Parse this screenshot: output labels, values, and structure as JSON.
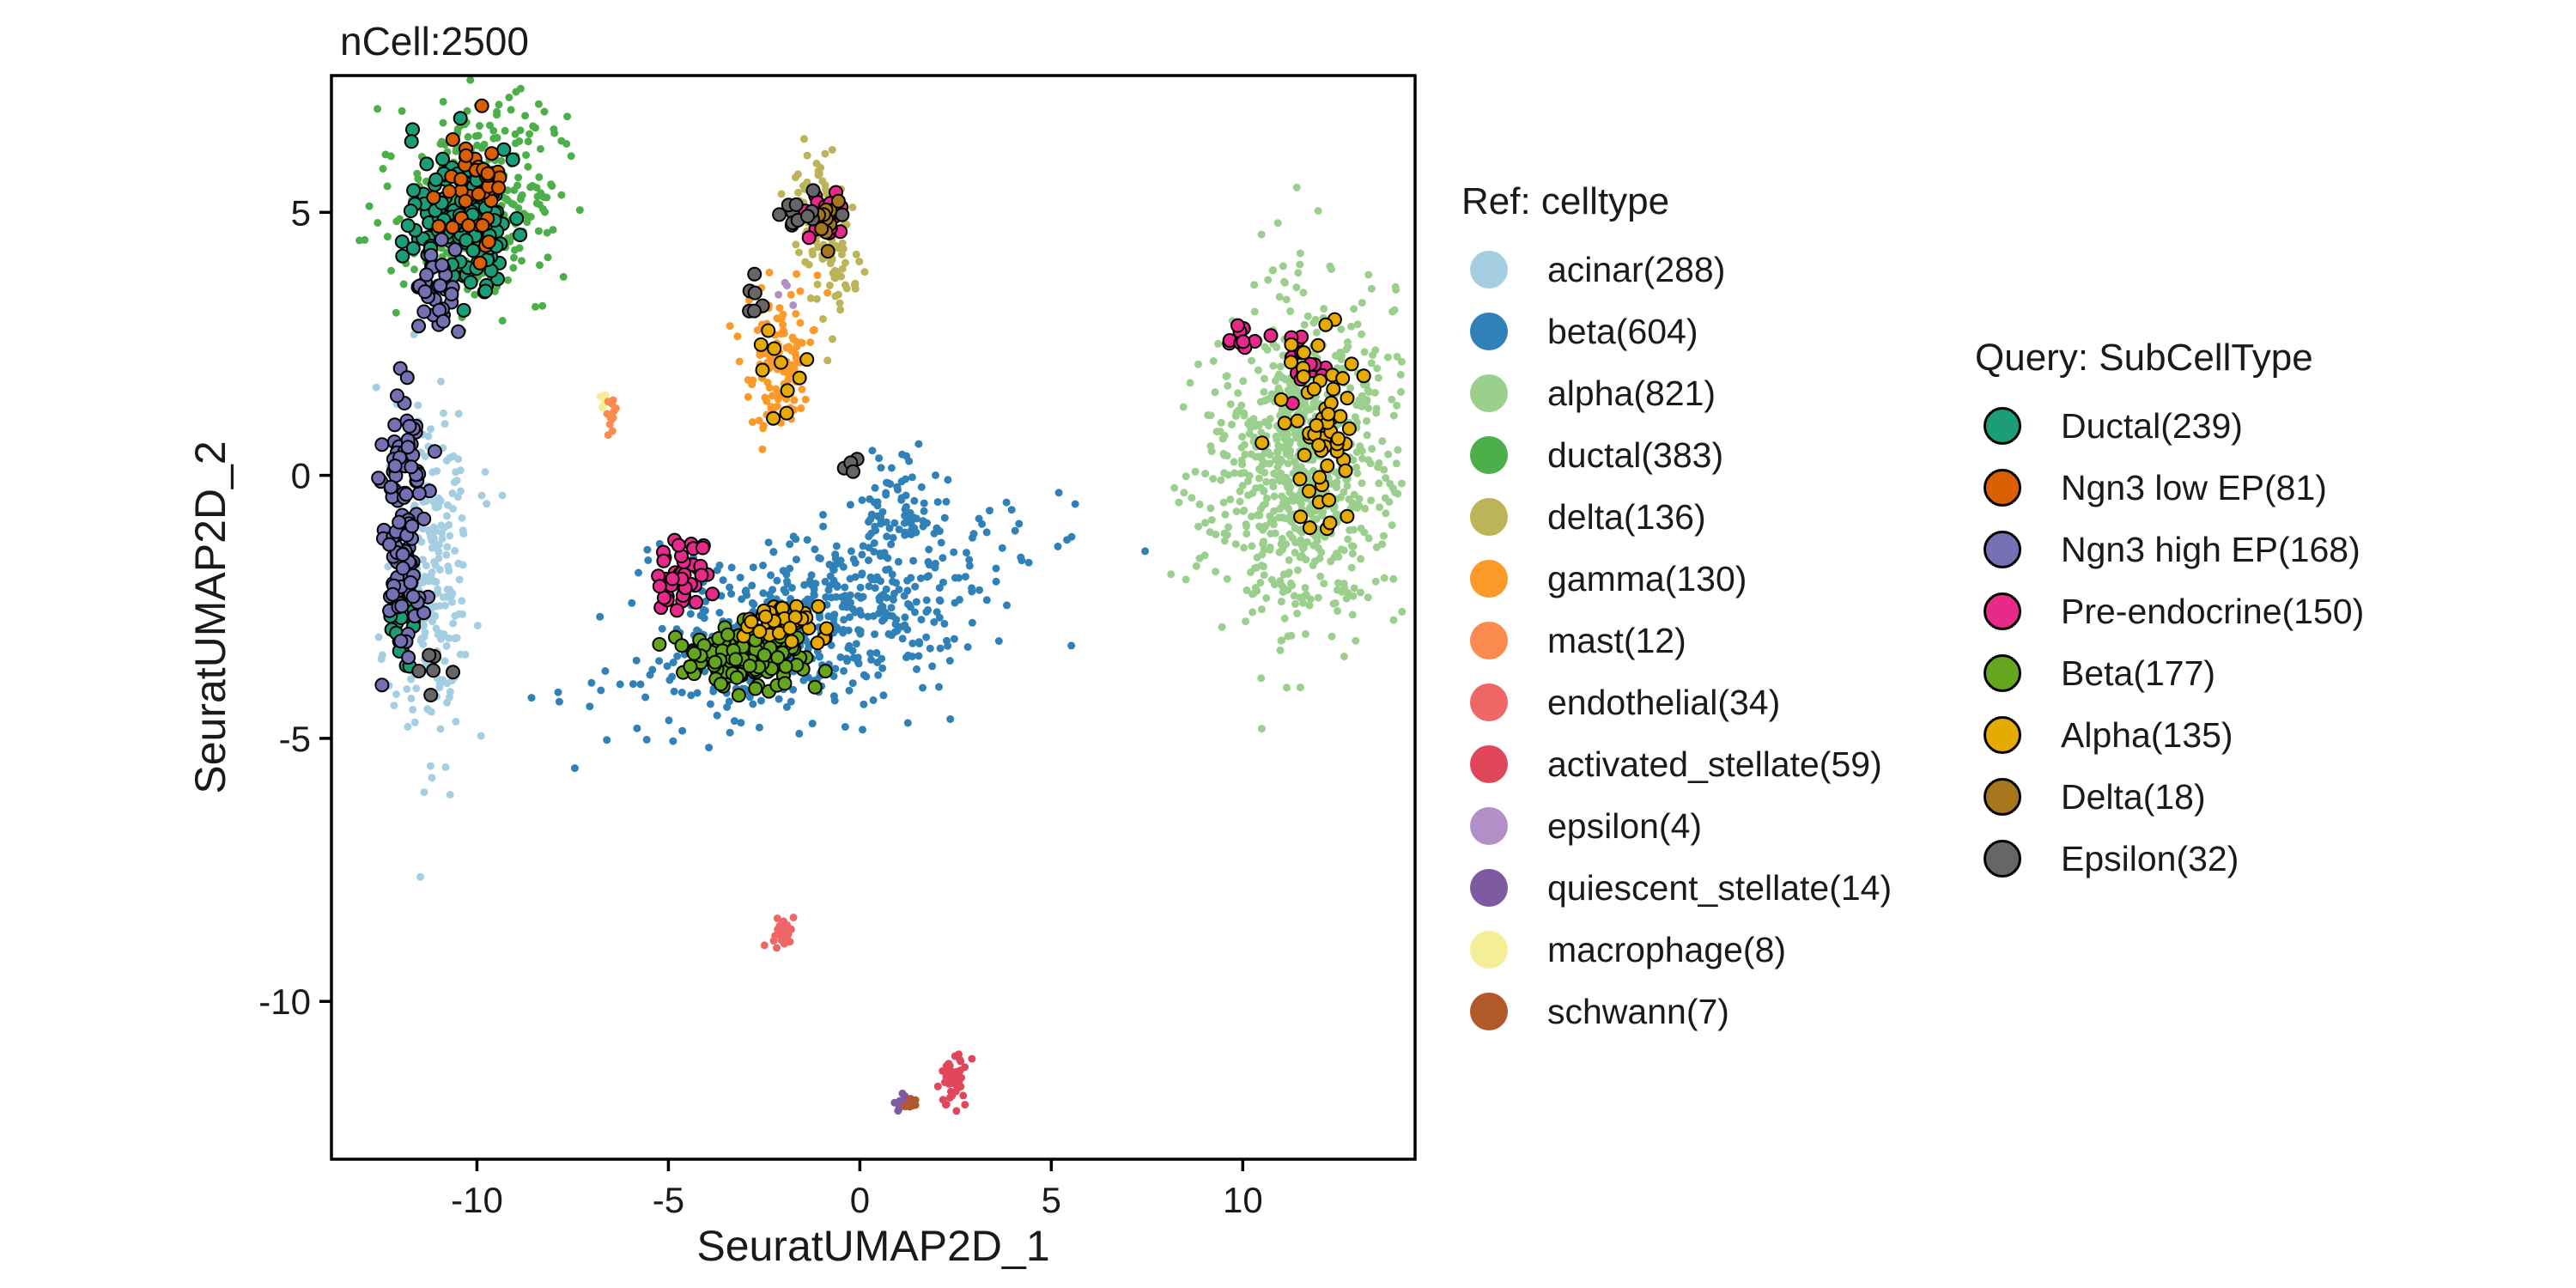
{
  "chart_data": {
    "type": "scatter",
    "title": "nCell:2500",
    "xlabel": "SeuratUMAP2D_1",
    "ylabel": "SeuratUMAP2D_2",
    "xlim": [
      -13.8,
      14.5
    ],
    "ylim": [
      -13.0,
      7.6
    ],
    "x_ticks": [
      {
        "value": -10,
        "label": "-10"
      },
      {
        "value": -5,
        "label": "-5"
      },
      {
        "value": 0,
        "label": "0"
      },
      {
        "value": 5,
        "label": "5"
      },
      {
        "value": 10,
        "label": "10"
      }
    ],
    "y_ticks": [
      {
        "value": 5,
        "label": "5"
      },
      {
        "value": 0,
        "label": "0"
      },
      {
        "value": -5,
        "label": "-5"
      },
      {
        "value": -10,
        "label": "-10"
      }
    ],
    "grid": false,
    "legend_placement": "right",
    "ref_legend": {
      "title": "Ref: celltype",
      "items": [
        {
          "name": "acinar",
          "label": "acinar(288)",
          "count": 288,
          "color": "#A6CEE3"
        },
        {
          "name": "beta",
          "label": "beta(604)",
          "count": 604,
          "color": "#2F81B7"
        },
        {
          "name": "alpha",
          "label": "alpha(821)",
          "count": 821,
          "color": "#9ACF8D"
        },
        {
          "name": "ductal",
          "label": "ductal(383)",
          "count": 383,
          "color": "#4DAF4A"
        },
        {
          "name": "delta",
          "label": "delta(136)",
          "count": 136,
          "color": "#BBB459"
        },
        {
          "name": "gamma",
          "label": "gamma(130)",
          "count": 130,
          "color": "#FB9A29"
        },
        {
          "name": "mast",
          "label": "mast(12)",
          "count": 12,
          "color": "#FB8A4E"
        },
        {
          "name": "endothelial",
          "label": "endothelial(34)",
          "count": 34,
          "color": "#EE6666"
        },
        {
          "name": "activated_stellate",
          "label": "activated_stellate(59)",
          "count": 59,
          "color": "#E0475B"
        },
        {
          "name": "epsilon",
          "label": "epsilon(4)",
          "count": 4,
          "color": "#B38FC8"
        },
        {
          "name": "quiescent_stellate",
          "label": "quiescent_stellate(14)",
          "count": 14,
          "color": "#7E5AA0"
        },
        {
          "name": "macrophage",
          "label": "macrophage(8)",
          "count": 8,
          "color": "#F5EE98"
        },
        {
          "name": "schwann",
          "label": "schwann(7)",
          "count": 7,
          "color": "#B15928"
        }
      ]
    },
    "query_legend": {
      "title": "Query: SubCellType",
      "items": [
        {
          "name": "Ductal",
          "label": "Ductal(239)",
          "count": 239,
          "color": "#1B9E77"
        },
        {
          "name": "Ngn3 low EP",
          "label": "Ngn3 low EP(81)",
          "count": 81,
          "color": "#D95F02"
        },
        {
          "name": "Ngn3 high EP",
          "label": "Ngn3 high EP(168)",
          "count": 168,
          "color": "#7570B3"
        },
        {
          "name": "Pre-endocrine",
          "label": "Pre-endocrine(150)",
          "count": 150,
          "color": "#E7298A"
        },
        {
          "name": "Beta",
          "label": "Beta(177)",
          "count": 177,
          "color": "#66A61E"
        },
        {
          "name": "Alpha",
          "label": "Alpha(135)",
          "count": 135,
          "color": "#E6AB02"
        },
        {
          "name": "Delta",
          "label": "Delta(18)",
          "count": 18,
          "color": "#A6761D"
        },
        {
          "name": "Epsilon",
          "label": "Epsilon(32)",
          "count": 32,
          "color": "#666666"
        }
      ]
    },
    "ref_clusters": [
      {
        "celltype": "ductal",
        "n": 320,
        "cx": -10.0,
        "cy": 5.2,
        "sx": 1.1,
        "sy": 1.0,
        "tilt": 0.6
      },
      {
        "celltype": "acinar",
        "n": 260,
        "cx": -11.3,
        "cy": -1.6,
        "sx": 0.6,
        "sy": 1.6,
        "tilt": 0
      },
      {
        "celltype": "beta",
        "n": 560,
        "cx": -1.0,
        "cy": -2.7,
        "sx": 2.4,
        "sy": 0.9,
        "tilt": 0.25
      },
      {
        "celltype": "beta",
        "n": 60,
        "cx": 1.0,
        "cy": -0.6,
        "sx": 0.5,
        "sy": 0.6,
        "tilt": 0
      },
      {
        "celltype": "alpha",
        "n": 800,
        "cx": 11.5,
        "cy": 0.3,
        "sx": 1.2,
        "sy": 1.6,
        "tilt": -0.3
      },
      {
        "celltype": "gamma",
        "n": 120,
        "cx": -2.1,
        "cy": 2.2,
        "sx": 0.45,
        "sy": 0.7,
        "tilt": 0
      },
      {
        "celltype": "delta",
        "n": 130,
        "cx": -1.0,
        "cy": 4.7,
        "sx": 0.35,
        "sy": 0.8,
        "tilt": 0.3
      },
      {
        "celltype": "endothelial",
        "n": 30,
        "cx": -2.1,
        "cy": -8.7,
        "sx": 0.15,
        "sy": 0.15,
        "tilt": 0
      },
      {
        "celltype": "activated_stellate",
        "n": 55,
        "cx": 2.5,
        "cy": -11.5,
        "sx": 0.18,
        "sy": 0.22,
        "tilt": 0
      },
      {
        "celltype": "quiescent_stellate",
        "n": 14,
        "cx": 1.1,
        "cy": -11.9,
        "sx": 0.15,
        "sy": 0.1,
        "tilt": 0
      },
      {
        "celltype": "macrophage",
        "n": 8,
        "cx": -6.6,
        "cy": 1.3,
        "sx": 0.1,
        "sy": 0.15,
        "tilt": 0
      },
      {
        "celltype": "mast",
        "n": 12,
        "cx": -6.5,
        "cy": 1.1,
        "sx": 0.1,
        "sy": 0.15,
        "tilt": 0
      },
      {
        "celltype": "schwann",
        "n": 7,
        "cx": 1.3,
        "cy": -11.9,
        "sx": 0.1,
        "sy": 0.08,
        "tilt": 0
      },
      {
        "celltype": "epsilon",
        "n": 4,
        "cx": -2.0,
        "cy": 3.6,
        "sx": 0.2,
        "sy": 0.3,
        "tilt": 0
      }
    ],
    "query_clusters": [
      {
        "subtype": "Ductal",
        "n": 150,
        "cx": -10.4,
        "cy": 4.9,
        "sx": 0.6,
        "sy": 0.6,
        "tilt": 0.6
      },
      {
        "subtype": "Ductal",
        "n": 15,
        "cx": -11.9,
        "cy": -2.8,
        "sx": 0.3,
        "sy": 0.5,
        "tilt": 0
      },
      {
        "subtype": "Ngn3 high EP",
        "n": 110,
        "cx": -11.9,
        "cy": -1.0,
        "sx": 0.25,
        "sy": 1.3,
        "tilt": 0
      },
      {
        "subtype": "Ngn3 high EP",
        "n": 30,
        "cx": -11.0,
        "cy": 3.6,
        "sx": 0.3,
        "sy": 0.5,
        "tilt": 0
      },
      {
        "subtype": "Ngn3 low EP",
        "n": 40,
        "cx": -10.0,
        "cy": 5.5,
        "sx": 0.5,
        "sy": 0.6,
        "tilt": 0
      },
      {
        "subtype": "Pre-endocrine",
        "n": 45,
        "cx": -4.8,
        "cy": -2.0,
        "sx": 0.35,
        "sy": 0.35,
        "tilt": 0
      },
      {
        "subtype": "Pre-endocrine",
        "n": 25,
        "cx": -0.8,
        "cy": 4.9,
        "sx": 0.3,
        "sy": 0.25,
        "tilt": 0
      },
      {
        "subtype": "Pre-endocrine",
        "n": 15,
        "cx": 11.6,
        "cy": 1.9,
        "sx": 0.4,
        "sy": 0.5,
        "tilt": 0
      },
      {
        "subtype": "Pre-endocrine",
        "n": 10,
        "cx": 9.8,
        "cy": 2.6,
        "sx": 0.3,
        "sy": 0.3,
        "tilt": 0
      },
      {
        "subtype": "Beta",
        "n": 150,
        "cx": -2.9,
        "cy": -3.4,
        "sx": 0.75,
        "sy": 0.3,
        "tilt": 0
      },
      {
        "subtype": "Alpha",
        "n": 60,
        "cx": 11.9,
        "cy": 1.0,
        "sx": 0.5,
        "sy": 1.0,
        "tilt": 0
      },
      {
        "subtype": "Alpha",
        "n": 40,
        "cx": -2.0,
        "cy": -2.8,
        "sx": 0.6,
        "sy": 0.2,
        "tilt": 0
      },
      {
        "subtype": "Alpha",
        "n": 10,
        "cx": -2.1,
        "cy": 2.0,
        "sx": 0.3,
        "sy": 0.5,
        "tilt": 0
      },
      {
        "subtype": "Delta",
        "n": 10,
        "cx": -0.9,
        "cy": 4.8,
        "sx": 0.2,
        "sy": 0.2,
        "tilt": 0
      },
      {
        "subtype": "Epsilon",
        "n": 12,
        "cx": -1.5,
        "cy": 4.9,
        "sx": 0.3,
        "sy": 0.25,
        "tilt": 0
      },
      {
        "subtype": "Epsilon",
        "n": 6,
        "cx": -2.8,
        "cy": 3.4,
        "sx": 0.2,
        "sy": 0.2,
        "tilt": 0
      },
      {
        "subtype": "Epsilon",
        "n": 4,
        "cx": -0.5,
        "cy": 0.2,
        "sx": 0.2,
        "sy": 0.1,
        "tilt": 0
      },
      {
        "subtype": "Epsilon",
        "n": 6,
        "cx": -11.1,
        "cy": -3.6,
        "sx": 0.2,
        "sy": 0.2,
        "tilt": 0
      }
    ]
  }
}
